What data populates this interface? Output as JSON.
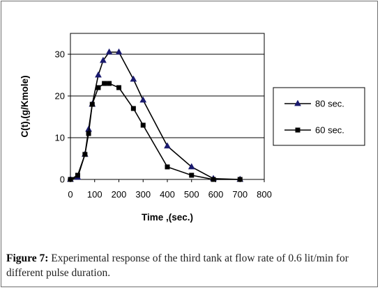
{
  "chart_data": {
    "type": "line",
    "title": "",
    "xlabel": "Time ,(sec.)",
    "ylabel": "C(t),(g/Kmole)",
    "xlim": [
      0,
      800
    ],
    "ylim": [
      0,
      35
    ],
    "x_ticks": [
      "0",
      "100",
      "200",
      "300",
      "400",
      "500",
      "600",
      "700",
      "800"
    ],
    "y_ticks": [
      "0",
      "10",
      "20",
      "30"
    ],
    "grid": "horizontal",
    "legend_position": "right",
    "series": [
      {
        "name": "80 sec.",
        "marker": "triangle",
        "color": "#000000",
        "x": [
          0,
          30,
          60,
          75,
          90,
          115,
          135,
          160,
          200,
          260,
          300,
          400,
          500,
          590,
          700
        ],
        "y": [
          0,
          0.5,
          6,
          12,
          18,
          25,
          28.5,
          30.5,
          30.5,
          24,
          19,
          8,
          3,
          0.2,
          0
        ]
      },
      {
        "name": "60 sec.",
        "marker": "square",
        "color": "#000000",
        "x": [
          0,
          30,
          60,
          75,
          90,
          115,
          140,
          160,
          200,
          260,
          300,
          400,
          500,
          590,
          700
        ],
        "y": [
          0,
          1,
          6,
          11,
          18,
          22,
          23,
          23,
          22,
          17,
          13,
          3,
          1,
          0,
          0
        ]
      }
    ]
  },
  "caption": {
    "label": "Figure 7:",
    "text": "Experimental response of the third tank at flow rate of 0.6 lit/min for different pulse duration."
  }
}
